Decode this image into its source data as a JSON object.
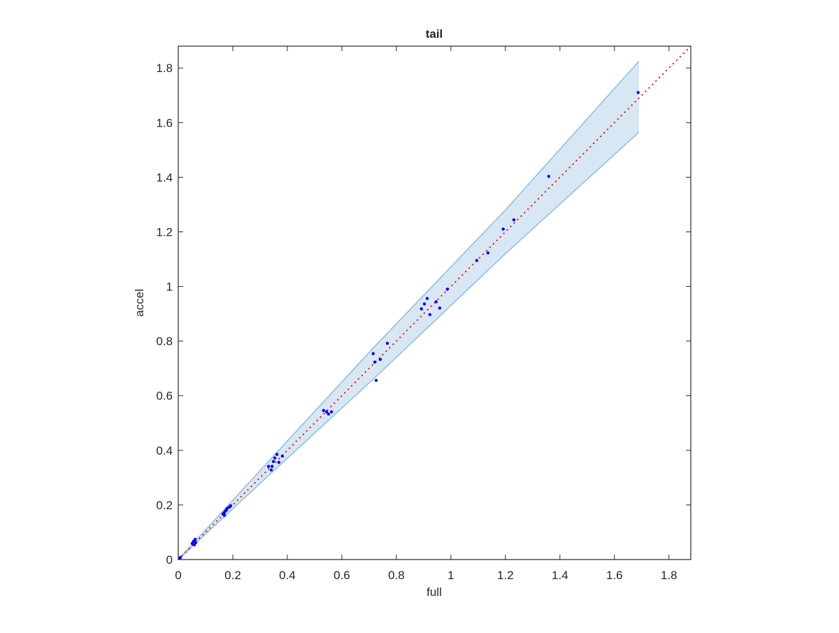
{
  "chart_data": {
    "type": "scatter",
    "title": "tail",
    "xlabel": "full",
    "ylabel": "accel",
    "xlim": [
      0,
      1.88
    ],
    "ylim": [
      0,
      1.88
    ],
    "xticks": [
      0,
      0.2,
      0.4,
      0.6,
      0.8,
      1,
      1.2,
      1.4,
      1.6,
      1.8
    ],
    "yticks": [
      0,
      0.2,
      0.4,
      0.6,
      0.8,
      1,
      1.2,
      1.4,
      1.6,
      1.8
    ],
    "color": "#0000ff",
    "x": [
      0.005,
      0.008,
      0.051,
      0.056,
      0.062,
      0.064,
      0.059,
      0.164,
      0.169,
      0.174,
      0.179,
      0.187,
      0.192,
      0.169,
      0.331,
      0.341,
      0.349,
      0.354,
      0.362,
      0.369,
      0.382,
      0.344,
      0.533,
      0.544,
      0.551,
      0.562,
      0.715,
      0.721,
      0.726,
      0.741,
      0.767,
      0.892,
      0.903,
      0.913,
      0.923,
      0.946,
      0.959,
      0.987,
      1.095,
      1.136,
      1.192,
      1.231,
      1.359,
      1.687
    ],
    "y": [
      0.005,
      0.008,
      0.059,
      0.067,
      0.074,
      0.062,
      0.054,
      0.167,
      0.172,
      0.179,
      0.187,
      0.192,
      0.197,
      0.162,
      0.341,
      0.328,
      0.359,
      0.372,
      0.385,
      0.356,
      0.379,
      0.341,
      0.546,
      0.541,
      0.533,
      0.541,
      0.754,
      0.723,
      0.656,
      0.733,
      0.792,
      0.918,
      0.936,
      0.956,
      0.897,
      0.944,
      0.921,
      0.99,
      1.095,
      1.123,
      1.21,
      1.244,
      1.403,
      1.71
    ],
    "band": {
      "color": "#d7e7f4",
      "edge_color": "#8dbde0",
      "x": [
        0,
        0.35,
        0.72,
        1.2,
        1.69
      ],
      "upper": [
        0,
        0.38,
        0.78,
        1.28,
        1.825
      ],
      "lower": [
        0,
        0.325,
        0.665,
        1.12,
        1.565
      ]
    },
    "reference_line": {
      "color": "#ff0000",
      "x": [
        0,
        1.88
      ],
      "y": [
        0,
        1.88
      ]
    }
  }
}
